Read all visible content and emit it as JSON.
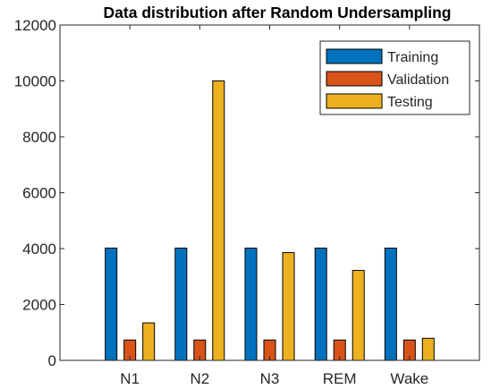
{
  "chart_data": {
    "type": "bar",
    "title": "Data distribution after Random Undersampling",
    "xlabel": "",
    "ylabel": "",
    "categories": [
      "N1",
      "N2",
      "N3",
      "REM",
      "Wake"
    ],
    "series": [
      {
        "name": "Training",
        "values": [
          4020,
          4020,
          4020,
          4020,
          4020
        ],
        "color": "#0072BD"
      },
      {
        "name": "Validation",
        "values": [
          730,
          730,
          730,
          730,
          730
        ],
        "color": "#D95319"
      },
      {
        "name": "Testing",
        "values": [
          1340,
          10000,
          3860,
          3220,
          790
        ],
        "color": "#EDB120"
      }
    ],
    "ylim": [
      0,
      12000
    ],
    "yticks": [
      0,
      2000,
      4000,
      6000,
      8000,
      10000,
      12000
    ],
    "ytick_labels": [
      "0",
      "2000",
      "4000",
      "6000",
      "8000",
      "10000",
      "12000"
    ],
    "grid": false,
    "legend_position": "top-right"
  }
}
